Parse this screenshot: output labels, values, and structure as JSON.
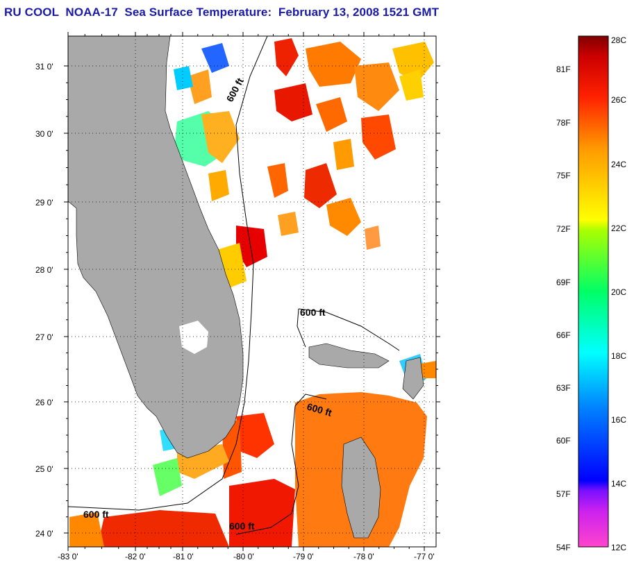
{
  "title": "RU COOL  NOAA-17  Sea Surface Temperature:  February 13, 2008 1521 GMT",
  "map": {
    "lon_range": [
      -83.0,
      -76.9
    ],
    "lat_range": [
      23.8,
      31.45
    ],
    "x_tick_labels": [
      "-83 0'",
      "-82 0'",
      "-81 0'",
      "-80 0'",
      "-79 0'",
      "-78 0'",
      "-77 0'"
    ],
    "y_tick_labels": [
      "31 0'",
      "30 0'",
      "29 0'",
      "28 0'",
      "27 0'",
      "26 0'",
      "25 0'",
      "24 0'"
    ],
    "grid": "dotted",
    "land_color": "#a9a9a9",
    "no_data_color": "#ffffff",
    "contour_label": "600 ft"
  },
  "colorbar": {
    "celsius_labels": [
      "28C",
      "26C",
      "24C",
      "22C",
      "20C",
      "18C",
      "16C",
      "14C",
      "12C"
    ],
    "fahrenheit_labels": [
      "81F",
      "78F",
      "75F",
      "72F",
      "69F",
      "66F",
      "63F",
      "60F",
      "57F",
      "54F"
    ],
    "range_c": [
      12,
      28
    ],
    "colors": [
      "#ff33cc",
      "#8000ff",
      "#0000ff",
      "#0099ff",
      "#00ffff",
      "#00ff66",
      "#66ff00",
      "#ffff00",
      "#ffaa00",
      "#ff5500",
      "#ff0000",
      "#8b0000"
    ]
  }
}
